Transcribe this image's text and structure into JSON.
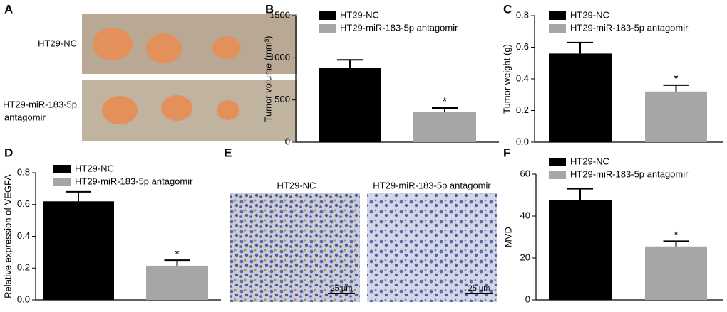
{
  "figure": {
    "panel_labels": [
      "A",
      "B",
      "C",
      "D",
      "E",
      "F"
    ],
    "photo_rows": [
      [
        "HT29-NC"
      ],
      [
        "HT29-miR-183-5p",
        "antagomir"
      ]
    ],
    "micrographs": [
      "HT29-NC",
      "HT29-miR-183-5p antagomir"
    ],
    "scale_bar": "25 μm"
  },
  "chart_data": [
    {
      "type": "bar",
      "y_label": "Tumor volume (mm³)",
      "ylim": [
        0,
        1500
      ],
      "yticks": [
        0,
        500,
        1000,
        1500
      ],
      "series": [
        {
          "name": "HT29-NC",
          "color": "#000000",
          "values": [
            880
          ],
          "errors": [
            95
          ]
        },
        {
          "name": "HT29-miR-183-5p antagomir",
          "color": "#a6a6a6",
          "values": [
            360
          ],
          "errors": [
            45
          ],
          "annotation": "*"
        }
      ]
    },
    {
      "type": "bar",
      "y_label": "Tumor weight (g)",
      "ylim": [
        0,
        0.8
      ],
      "yticks": [
        {
          "value": 0,
          "label": "0.0"
        },
        0.2,
        0.4,
        0.6,
        0.8
      ],
      "series": [
        {
          "name": "HT29-NC",
          "color": "#000000",
          "values": [
            0.56
          ],
          "errors": [
            0.07
          ]
        },
        {
          "name": "HT29-miR-183-5p antagomir",
          "color": "#a6a6a6",
          "values": [
            0.32
          ],
          "errors": [
            0.04
          ],
          "annotation": "*"
        }
      ]
    },
    {
      "type": "bar",
      "y_label": "Relative expression of VEGFA",
      "ylim": [
        0,
        0.8
      ],
      "yticks": [
        {
          "value": 0,
          "label": "0.0"
        },
        0.2,
        0.4,
        0.6,
        0.8
      ],
      "series": [
        {
          "name": "HT29-NC",
          "color": "#000000",
          "values": [
            0.62
          ],
          "errors": [
            0.06
          ]
        },
        {
          "name": "HT29-miR-183-5p antagomir",
          "color": "#a6a6a6",
          "values": [
            0.215
          ],
          "errors": [
            0.035
          ],
          "annotation": "*"
        }
      ]
    },
    {
      "type": "bar",
      "y_label": "MVD",
      "ylim": [
        0,
        60
      ],
      "yticks": [
        0,
        20,
        40,
        60
      ],
      "series": [
        {
          "name": "HT29-NC",
          "color": "#000000",
          "values": [
            47.5
          ],
          "errors": [
            5.5
          ]
        },
        {
          "name": "HT29-miR-183-5p antagomir",
          "color": "#a6a6a6",
          "values": [
            25.5
          ],
          "errors": [
            2.5
          ],
          "annotation": "*"
        }
      ]
    }
  ]
}
